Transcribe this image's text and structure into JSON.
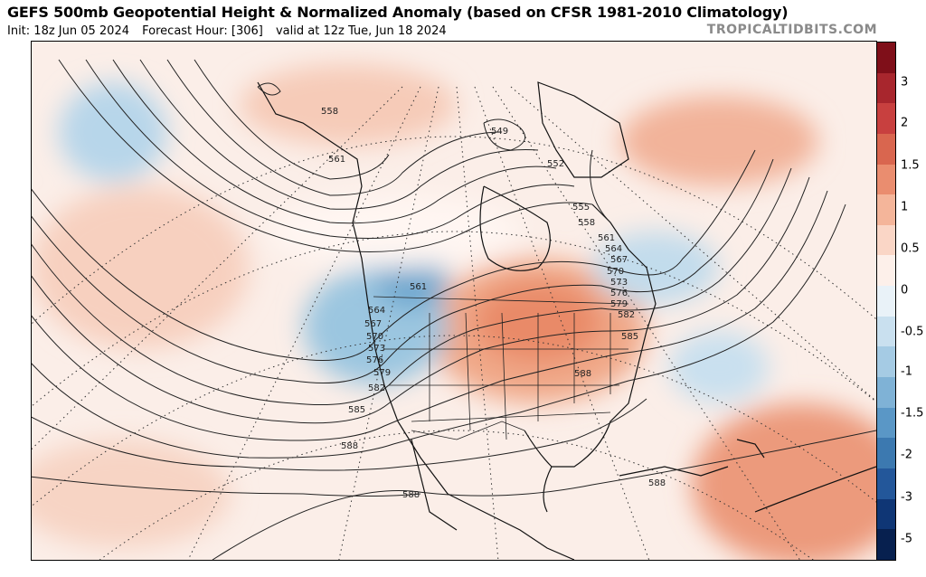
{
  "header": {
    "title": "GEFS 500mb Geopotential Height & Normalized Anomaly (based on CFSR 1981-2010 Climatology)",
    "init": "Init: 18z Jun 05 2024",
    "forecast_hour": "Forecast Hour: [306]",
    "valid": "valid at 12z Tue, Jun 18 2024",
    "brand": "TROPICALTIDBITS.COM"
  },
  "colorbar": {
    "labels": [
      "3",
      "2",
      "1.5",
      "1",
      "0.5",
      "0",
      "-0.5",
      "-1",
      "-1.5",
      "-2",
      "-3",
      "-5"
    ],
    "colors": [
      "#7f0f19",
      "#a8262d",
      "#c8403f",
      "#d9664f",
      "#ea8d6f",
      "#f4b59a",
      "#fad6c6",
      "#fdf0ea",
      "#e9f2f8",
      "#c9e0ef",
      "#a5cbe4",
      "#7fb2d6",
      "#5a97c6",
      "#3c79b0",
      "#23579a",
      "#0f3675",
      "#07204f"
    ]
  },
  "contour_labels": [
    "558",
    "561",
    "549",
    "552",
    "555",
    "558",
    "561",
    "564",
    "567",
    "570",
    "573",
    "576",
    "579",
    "582",
    "585",
    "561",
    "564",
    "567",
    "570",
    "573",
    "576",
    "579",
    "582",
    "585",
    "588",
    "588",
    "588",
    "588"
  ],
  "colors": {
    "ridge": "#f2a98d",
    "trough": "#8fbfdc",
    "contour": "#222222"
  }
}
